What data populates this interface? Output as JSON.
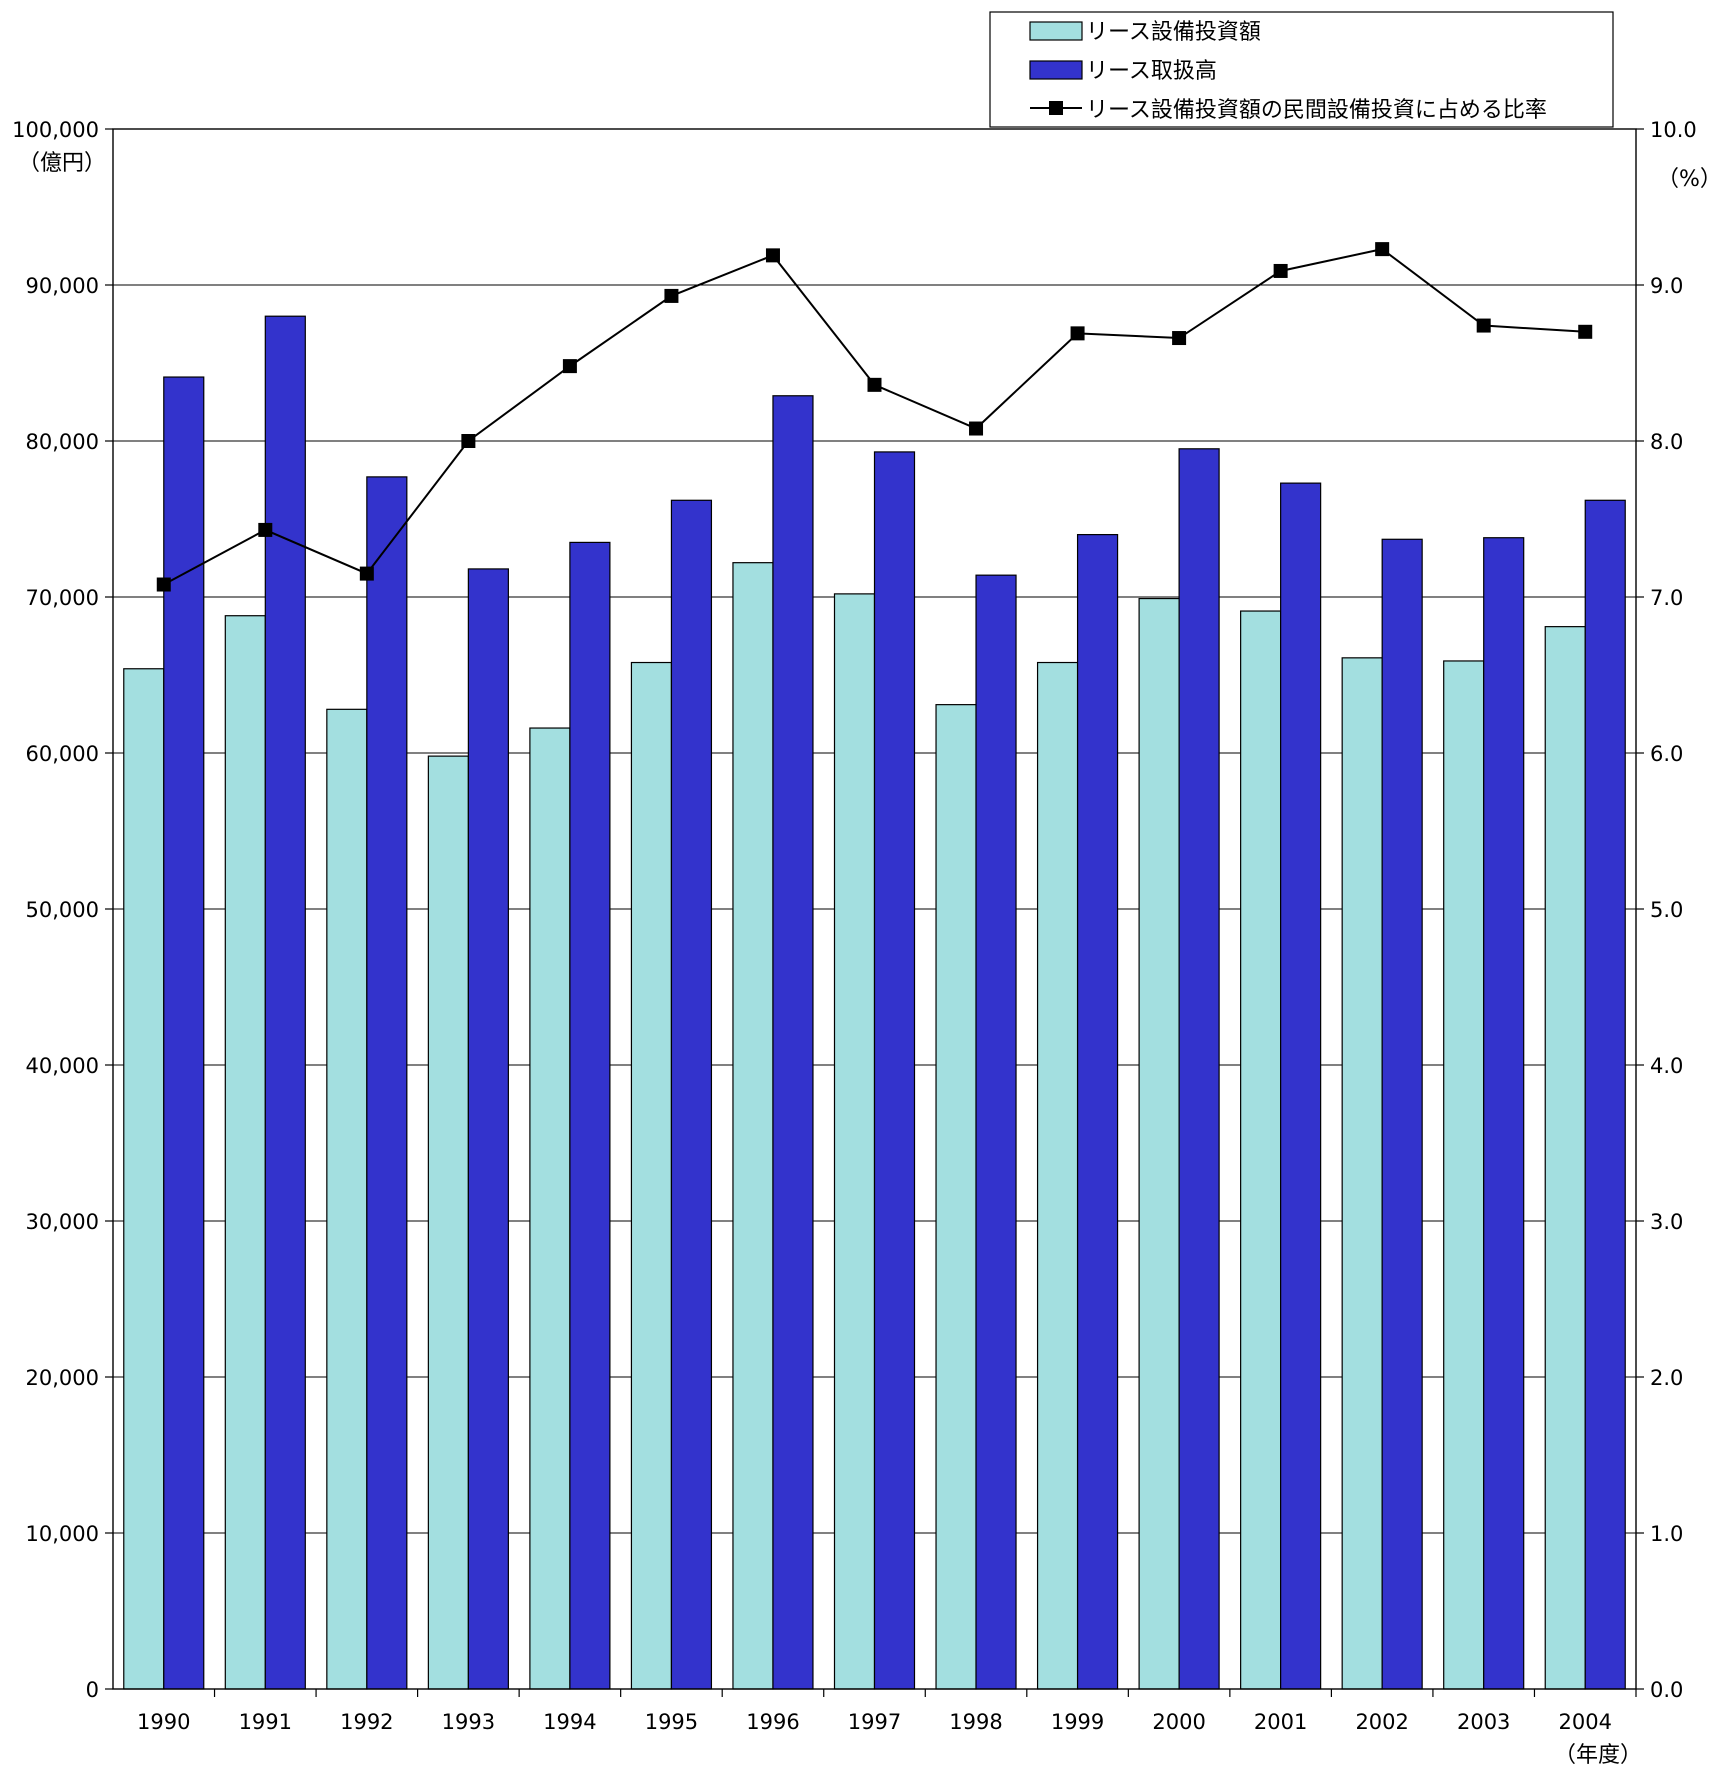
{
  "chart_data": {
    "type": "bar",
    "categories": [
      "1990",
      "1991",
      "1992",
      "1993",
      "1994",
      "1995",
      "1996",
      "1997",
      "1998",
      "1999",
      "2000",
      "2001",
      "2002",
      "2003",
      "2004"
    ],
    "x_unit": "（年度）",
    "y_left": {
      "unit": "（億円）",
      "range": [
        0,
        100000
      ],
      "ticks": [
        "0",
        "10,000",
        "20,000",
        "30,000",
        "40,000",
        "50,000",
        "60,000",
        "70,000",
        "80,000",
        "90,000",
        "100,000"
      ]
    },
    "y_right": {
      "unit": "（%）",
      "range": [
        0,
        10
      ],
      "ticks": [
        "0.0",
        "1.0",
        "2.0",
        "3.0",
        "4.0",
        "5.0",
        "6.0",
        "7.0",
        "8.0",
        "9.0",
        "10.0"
      ]
    },
    "grid": true,
    "legend_position": "top-right",
    "series": [
      {
        "name": "リース設備投資額",
        "type": "bar",
        "axis": "left",
        "color": "#a3dfe0",
        "values": [
          65400,
          68800,
          62800,
          59800,
          61600,
          65800,
          72200,
          70200,
          63100,
          65800,
          69900,
          69100,
          66100,
          65900,
          68100
        ]
      },
      {
        "name": "リース取扱高",
        "type": "bar",
        "axis": "left",
        "color": "#3333cc",
        "values": [
          84100,
          88000,
          77700,
          71800,
          73500,
          76200,
          82900,
          79300,
          71400,
          74000,
          79500,
          77300,
          73700,
          73800,
          76200
        ]
      },
      {
        "name": "リース設備投資額の民間設備投資に占める比率",
        "type": "line",
        "axis": "right",
        "color": "#000000",
        "values": [
          7.08,
          7.43,
          7.15,
          8.0,
          8.48,
          8.93,
          9.19,
          8.36,
          8.08,
          8.69,
          8.66,
          9.09,
          9.23,
          8.74,
          8.7
        ]
      }
    ]
  }
}
